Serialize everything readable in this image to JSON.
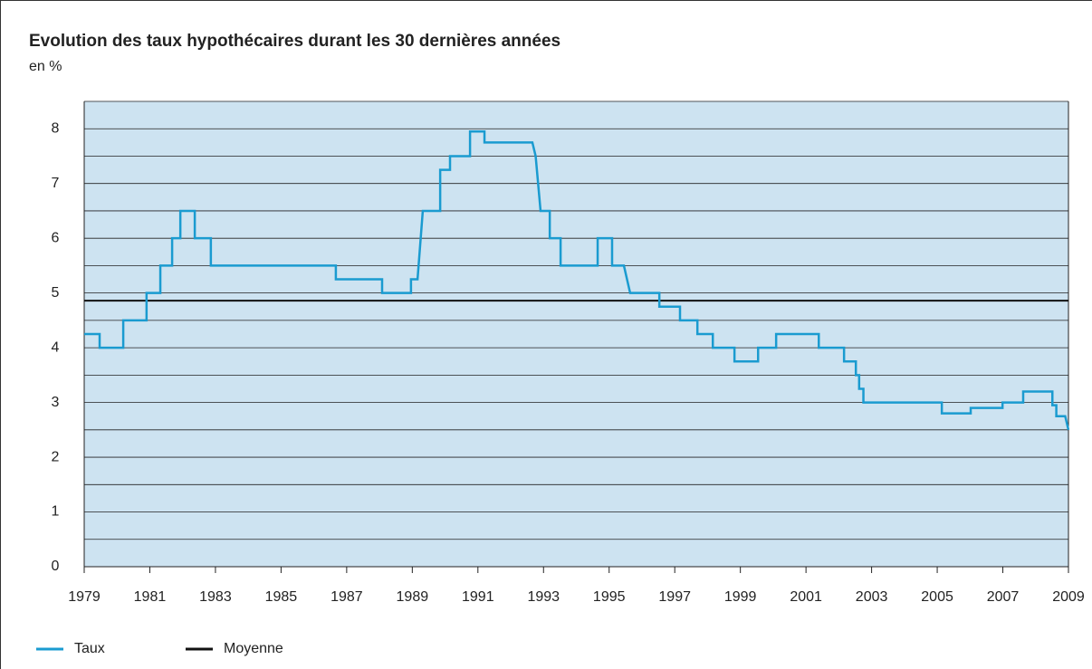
{
  "chart_data": {
    "type": "line",
    "title": "Evolution des taux hypothécaires durant les 30 dernières années",
    "subtitle": "en %",
    "xlim": [
      1979,
      2009
    ],
    "xticks": [
      1979,
      1981,
      1983,
      1985,
      1987,
      1989,
      1991,
      1993,
      1995,
      1997,
      1999,
      2001,
      2003,
      2005,
      2007,
      2009
    ],
    "ylim": [
      0,
      8.5
    ],
    "yticks": [
      0,
      1,
      2,
      3,
      4,
      5,
      6,
      7,
      8
    ],
    "minor_yticks": [
      0.5,
      1.5,
      2.5,
      3.5,
      4.5,
      5.5,
      6.5,
      7.5,
      8.5
    ],
    "grid": true,
    "legend": "bottom-left",
    "series": [
      {
        "name": "Taux",
        "color": "#1a9bd0",
        "x": [
          1979,
          1979.47,
          1979.47,
          1980.19,
          1980.19,
          1980.9,
          1980.9,
          1981.32,
          1981.32,
          1981.68,
          1981.68,
          1981.93,
          1981.93,
          1982.37,
          1982.37,
          1982.86,
          1982.86,
          1986.67,
          1986.67,
          1988.08,
          1988.08,
          1988.96,
          1988.96,
          1989.16,
          1989.32,
          1989.85,
          1989.85,
          1990.15,
          1990.15,
          1990.76,
          1990.76,
          1991.2,
          1991.2,
          1992.66,
          1992.76,
          1992.91,
          1993.19,
          1993.19,
          1993.52,
          1993.52,
          1994.65,
          1994.65,
          1995.09,
          1995.09,
          1995.45,
          1995.64,
          1996.53,
          1996.53,
          1997.16,
          1997.16,
          1997.69,
          1997.69,
          1998.16,
          1998.16,
          1998.82,
          1998.82,
          1999.54,
          1999.54,
          2000.09,
          2000.09,
          2001.39,
          2001.39,
          2002.16,
          2002.16,
          2002.52,
          2002.52,
          2002.62,
          2002.62,
          2002.75,
          2002.75,
          2005.14,
          2005.14,
          2006.02,
          2006.02,
          2006.99,
          2006.99,
          2007.62,
          2007.62,
          2008.51,
          2008.51,
          2008.63,
          2008.63,
          2008.9,
          2009
        ],
        "values": [
          4.25,
          4.25,
          4.0,
          4.0,
          4.5,
          4.5,
          5.0,
          5.0,
          5.5,
          5.5,
          6.0,
          6.0,
          6.5,
          6.5,
          6.0,
          6.0,
          5.5,
          5.5,
          5.25,
          5.25,
          5.0,
          5.0,
          5.25,
          5.25,
          6.5,
          6.5,
          7.25,
          7.25,
          7.5,
          7.5,
          7.95,
          7.95,
          7.75,
          7.75,
          7.5,
          6.5,
          6.5,
          6.0,
          6.0,
          5.5,
          5.5,
          6.0,
          6.0,
          5.5,
          5.5,
          5.0,
          5.0,
          4.75,
          4.75,
          4.5,
          4.5,
          4.25,
          4.25,
          4.0,
          4.0,
          3.75,
          3.75,
          4.0,
          4.0,
          4.25,
          4.25,
          4.0,
          4.0,
          3.75,
          3.75,
          3.5,
          3.5,
          3.25,
          3.25,
          3.0,
          3.0,
          2.8,
          2.8,
          2.9,
          2.9,
          3.0,
          3.0,
          3.2,
          3.2,
          2.95,
          2.95,
          2.75,
          2.75,
          2.5
        ]
      },
      {
        "name": "Moyenne",
        "color": "#111111",
        "x": [
          1979,
          2009
        ],
        "values": [
          4.86,
          4.86
        ]
      }
    ]
  }
}
